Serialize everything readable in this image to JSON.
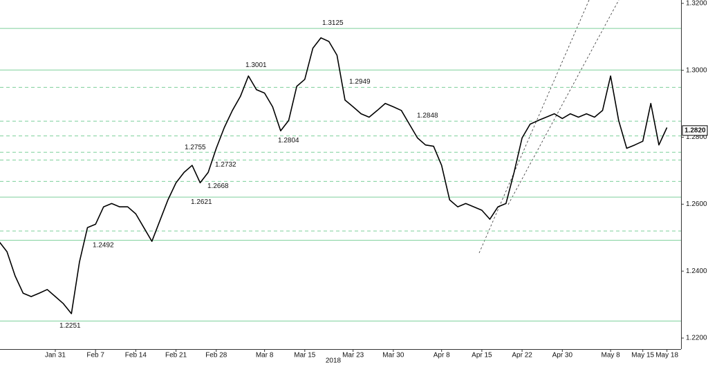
{
  "chart_data": {
    "type": "line",
    "xlabel": "2018",
    "categories": [
      null,
      null,
      null,
      null,
      null,
      null,
      null,
      "Jan 31",
      null,
      null,
      null,
      null,
      "Feb 7",
      null,
      null,
      null,
      null,
      "Feb 14",
      null,
      null,
      null,
      null,
      "Feb 21",
      null,
      null,
      null,
      null,
      "Feb 28",
      null,
      null,
      null,
      null,
      null,
      "Mar 8",
      null,
      null,
      null,
      null,
      "Mar 15",
      null,
      null,
      null,
      null,
      null,
      "Mar 23",
      null,
      null,
      null,
      null,
      "Mar 30",
      null,
      null,
      null,
      null,
      null,
      "Apr 8",
      null,
      null,
      null,
      null,
      "Apr 15",
      null,
      null,
      null,
      null,
      "Apr 22",
      null,
      null,
      null,
      null,
      "Apr 30",
      null,
      null,
      null,
      null,
      null,
      "May 8",
      null,
      null,
      null,
      "May 15",
      null,
      null,
      "May 18"
    ],
    "series": [
      {
        "color": "#000000",
        "values": [
          1.2489,
          1.2458,
          1.2386,
          1.2334,
          1.2324,
          1.2334,
          1.2345,
          1.2324,
          1.2303,
          1.2273,
          1.2427,
          1.253,
          1.254,
          1.2592,
          1.2602,
          1.2592,
          1.2592,
          1.2571,
          1.253,
          1.2489,
          1.2551,
          1.2613,
          1.2664,
          1.2695,
          1.2716,
          1.2664,
          1.2695,
          1.2767,
          1.2829,
          1.288,
          1.2922,
          1.2983,
          1.2942,
          1.2932,
          1.2891,
          1.2819,
          1.285,
          1.2952,
          1.2973,
          1.3066,
          1.3097,
          1.3086,
          1.3045,
          1.2911,
          1.2891,
          1.287,
          1.286,
          1.288,
          1.2901,
          1.2891,
          1.288,
          1.2839,
          1.2798,
          1.2777,
          1.2773,
          1.2716,
          1.2613,
          1.2592,
          1.2602,
          1.2592,
          1.2582,
          1.2555,
          1.2592,
          1.2602,
          1.2695,
          1.2798,
          1.2839,
          1.285,
          1.286,
          1.287,
          1.2856,
          1.287,
          1.286,
          1.287,
          1.286,
          1.288,
          1.2983,
          1.285,
          1.2767,
          1.2777,
          1.2788,
          1.2901,
          1.2777,
          1.2829
        ]
      }
    ],
    "ylim": [
      1.2167,
      1.321
    ],
    "yticks": [
      {
        "value": 1.22,
        "label": "1.2200"
      },
      {
        "value": 1.24,
        "label": "1.2400"
      },
      {
        "value": 1.26,
        "label": "1.2600"
      },
      {
        "value": 1.28,
        "label": "1.2800"
      },
      {
        "value": 1.3,
        "label": "1.3000"
      },
      {
        "value": 1.32,
        "label": "1.3200"
      }
    ],
    "levels": [
      {
        "value": 1.3125,
        "label": "1.3125",
        "dashed": false
      },
      {
        "value": 1.3001,
        "label": "1.3001",
        "dashed": false
      },
      {
        "value": 1.2949,
        "label": "1.2949",
        "dashed": true
      },
      {
        "value": 1.2848,
        "label": "1.2848",
        "dashed": true
      },
      {
        "value": 1.2804,
        "label": "1.2804",
        "dashed": true
      },
      {
        "value": 1.2755,
        "label": "1.2755",
        "dashed": true
      },
      {
        "value": 1.2732,
        "label": "1.2732",
        "dashed": true
      },
      {
        "value": 1.2668,
        "label": "1.2668",
        "dashed": true
      },
      {
        "value": 1.2621,
        "label": "1.2621",
        "dashed": false
      },
      {
        "value": 1.252,
        "dashed": true
      },
      {
        "value": 1.2492,
        "label": "1.2492",
        "dashed": false
      },
      {
        "value": 1.2251,
        "label": "1.2251",
        "dashed": false
      }
    ],
    "level_color": "#7ccf9a",
    "last": {
      "value": 1.282,
      "label": "1.2820"
    }
  }
}
